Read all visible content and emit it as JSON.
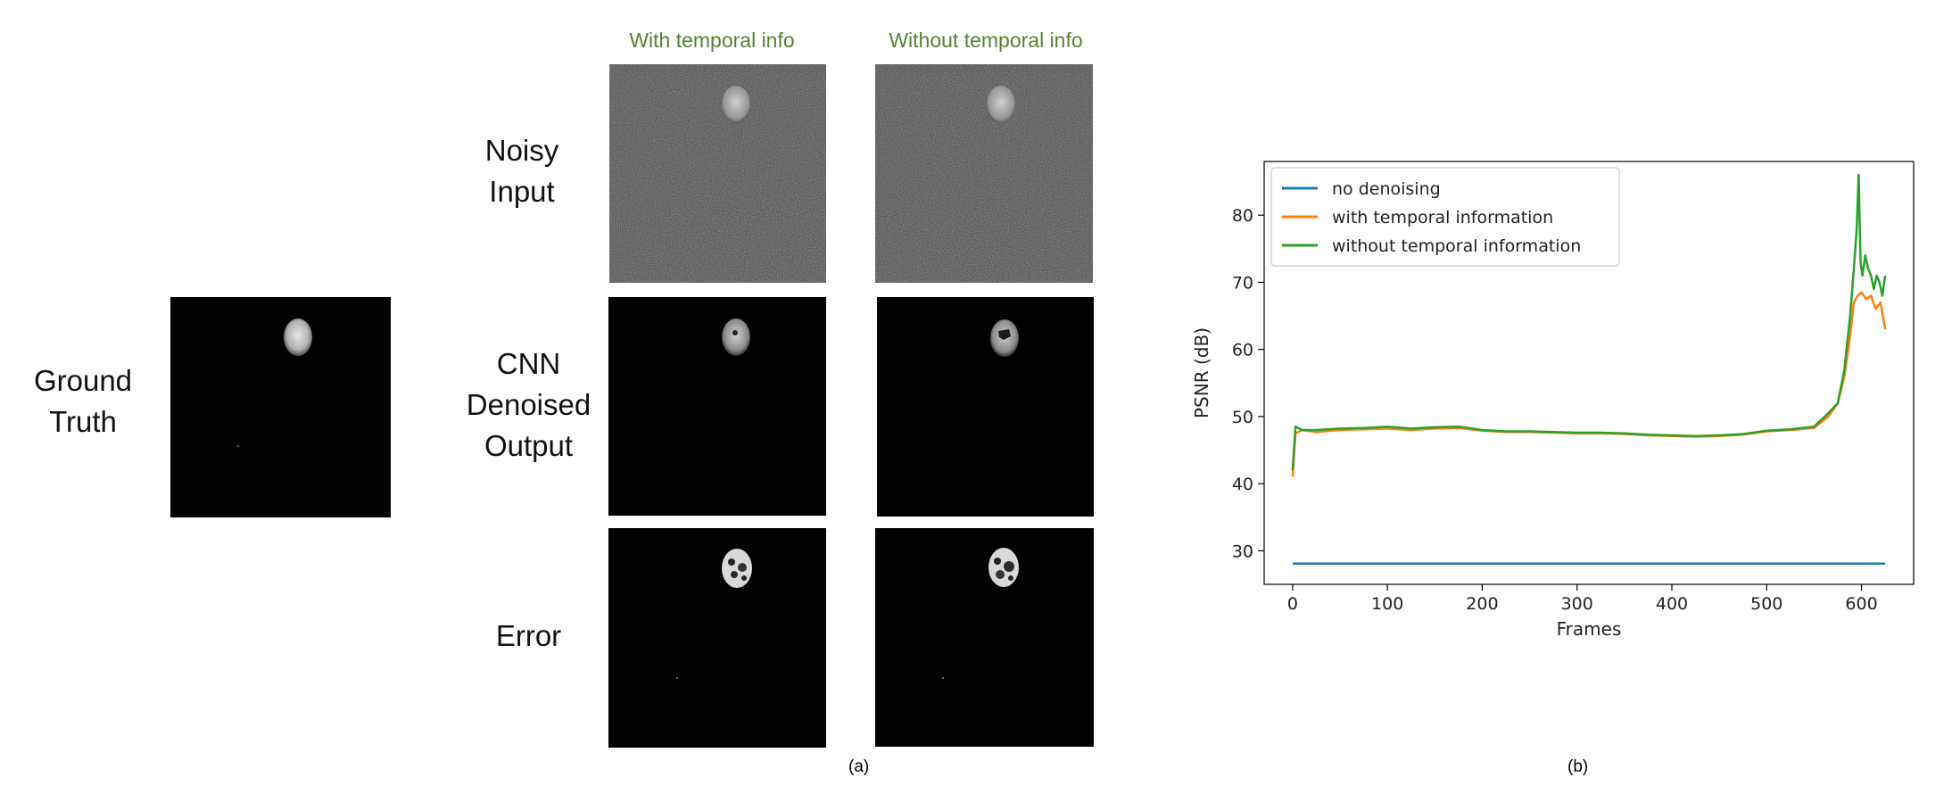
{
  "figure_a": {
    "column_headers": [
      "With temporal info",
      "Without temporal info"
    ],
    "ground_truth_label": "Ground\nTruth",
    "row_labels": {
      "noisy": "Noisy\nInput",
      "cnn": "CNN\nDenoised\nOutput",
      "error": "Error"
    },
    "caption": "(a)"
  },
  "figure_b": {
    "caption": "(b)"
  },
  "chart_data": {
    "type": "line",
    "title": "",
    "xlabel": "Frames",
    "ylabel": "PSNR (dB)",
    "xlim": [
      -30,
      655
    ],
    "ylim": [
      25,
      88
    ],
    "xticks": [
      0,
      100,
      200,
      300,
      400,
      500,
      600
    ],
    "yticks": [
      30,
      40,
      50,
      60,
      70,
      80
    ],
    "legend_position": "top-left",
    "grid": false,
    "series": [
      {
        "name": "no denoising",
        "color": "#1f77b4",
        "x": [
          0,
          100,
          200,
          300,
          400,
          500,
          625
        ],
        "y": [
          28.1,
          28.1,
          28.1,
          28.1,
          28.1,
          28.1,
          28.1
        ]
      },
      {
        "name": "with temporal information",
        "color": "#ff7f0e",
        "x": [
          0,
          3,
          10,
          25,
          50,
          75,
          100,
          125,
          150,
          175,
          200,
          225,
          250,
          275,
          300,
          325,
          350,
          375,
          400,
          425,
          450,
          475,
          500,
          525,
          550,
          565,
          575,
          582,
          588,
          592,
          596,
          600,
          605,
          610,
          615,
          620,
          625
        ],
        "y": [
          41,
          47.5,
          48,
          47.7,
          48,
          48.1,
          48.2,
          48,
          48.2,
          48.3,
          47.9,
          47.7,
          47.7,
          47.6,
          47.5,
          47.5,
          47.4,
          47.2,
          47.1,
          47,
          47.1,
          47.3,
          47.8,
          48,
          48.3,
          50,
          52,
          56,
          62,
          67,
          68,
          68.5,
          67.5,
          68,
          66,
          67,
          63
        ]
      },
      {
        "name": "without temporal information",
        "color": "#2ca02c",
        "x": [
          0,
          3,
          10,
          25,
          50,
          75,
          100,
          125,
          150,
          175,
          200,
          225,
          250,
          275,
          300,
          325,
          350,
          375,
          400,
          425,
          450,
          475,
          500,
          525,
          550,
          565,
          575,
          582,
          588,
          592,
          595,
          597,
          599,
          601,
          604,
          607,
          610,
          613,
          616,
          619,
          622,
          625
        ],
        "y": [
          42,
          48.5,
          48,
          48,
          48.2,
          48.3,
          48.5,
          48.2,
          48.4,
          48.5,
          48,
          47.8,
          47.8,
          47.7,
          47.6,
          47.6,
          47.5,
          47.3,
          47.2,
          47.1,
          47.2,
          47.4,
          47.9,
          48.1,
          48.5,
          50.5,
          52,
          57,
          65,
          72,
          78,
          86,
          73,
          71,
          74,
          72,
          71,
          69,
          71,
          70,
          68,
          71
        ]
      }
    ]
  }
}
